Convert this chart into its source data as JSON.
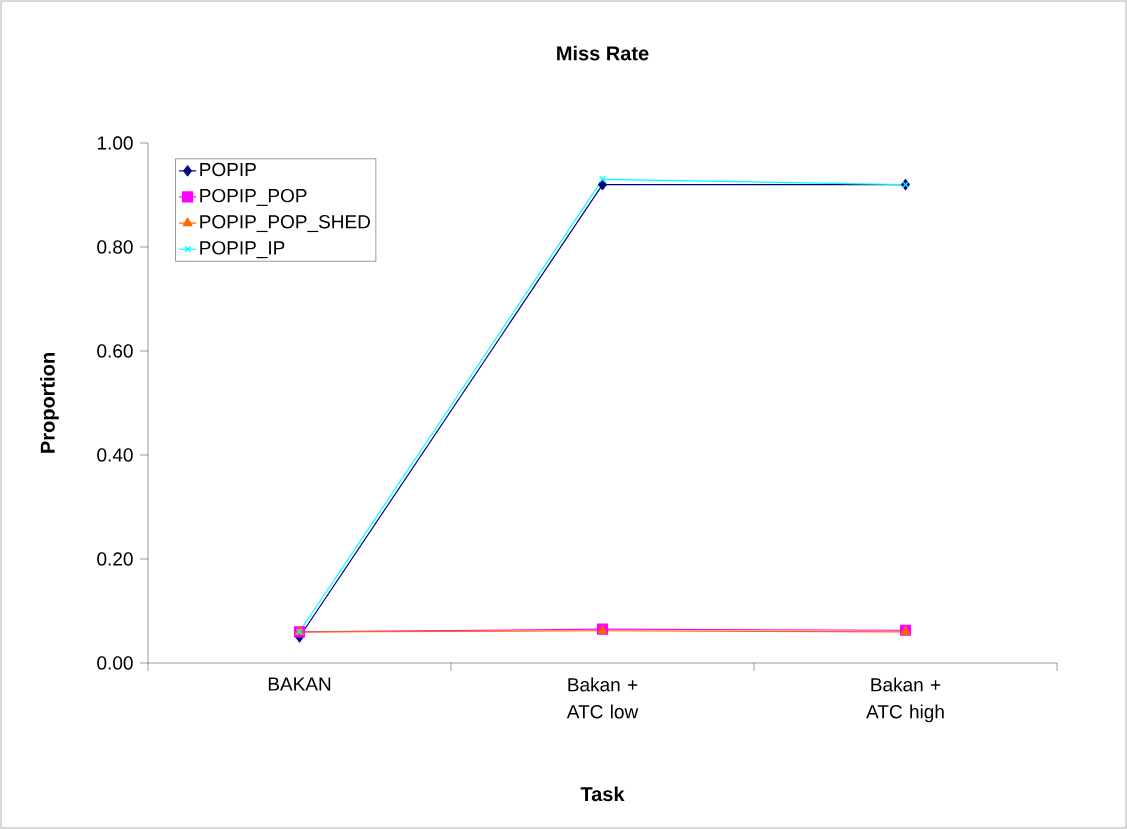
{
  "chart_data": {
    "type": "line",
    "title": "Miss Rate",
    "xlabel": "Task",
    "ylabel": "Proportion",
    "categories": [
      "BAKAN",
      "Bakan + ATC low",
      "Bakan + ATC high"
    ],
    "series": [
      {
        "name": "POPIP",
        "color": "#000080",
        "marker": "diamond",
        "values": [
          0.05,
          0.92,
          0.92
        ]
      },
      {
        "name": "POPIP_POP",
        "color": "#ff00ff",
        "marker": "square",
        "values": [
          0.06,
          0.065,
          0.063
        ]
      },
      {
        "name": "POPIP_POP_SHED",
        "color": "#ff6600",
        "marker": "triangle",
        "values": [
          0.06,
          0.062,
          0.06
        ]
      },
      {
        "name": "POPIP_IP",
        "color": "#00ffff",
        "marker": "cross",
        "values": [
          0.06,
          0.93,
          0.92
        ]
      }
    ],
    "ylim": [
      0,
      1
    ],
    "yticks": [
      {
        "value": 0,
        "label": "0.00"
      },
      {
        "value": 0.2,
        "label": "0.20"
      },
      {
        "value": 0.4,
        "label": "0.40"
      },
      {
        "value": 0.6,
        "label": "0.60"
      },
      {
        "value": 0.8,
        "label": "0.80"
      },
      {
        "value": 1,
        "label": "1.00"
      }
    ],
    "grid": false,
    "legend": "top left",
    "line_style": "solid"
  }
}
